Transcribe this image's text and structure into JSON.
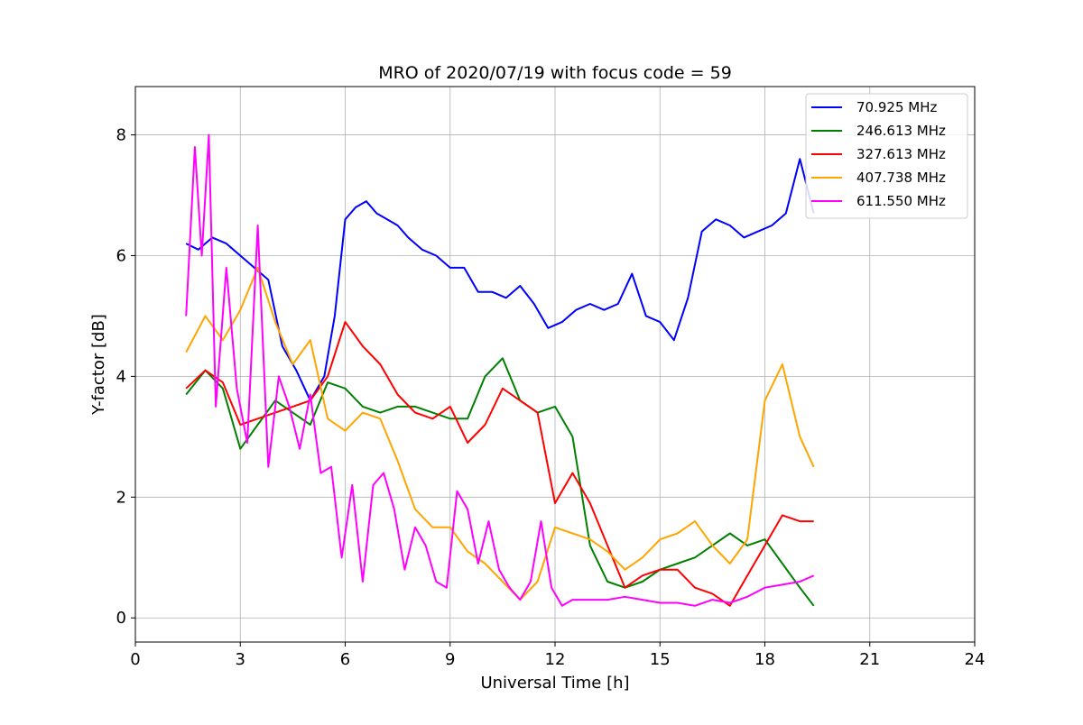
{
  "chart_data": {
    "type": "line",
    "title": "MRO of 2020/07/19 with focus code = 59",
    "xlabel": "Universal Time [h]",
    "ylabel": "Y-factor [dB]",
    "xlim": [
      0,
      24
    ],
    "ylim": [
      -0.4,
      8.8
    ],
    "xticks": [
      0,
      3,
      6,
      9,
      12,
      15,
      18,
      21,
      24
    ],
    "yticks": [
      0,
      2,
      4,
      6,
      8
    ],
    "grid": true,
    "legend_position": "top-right",
    "series": [
      {
        "name": " 70.925 MHz",
        "color": "#0000ff",
        "x": [
          1.45,
          1.8,
          2.2,
          2.6,
          3.0,
          3.4,
          3.8,
          4.2,
          4.6,
          5.0,
          5.4,
          5.7,
          6.0,
          6.3,
          6.6,
          6.9,
          7.2,
          7.5,
          7.8,
          8.2,
          8.6,
          9.0,
          9.4,
          9.8,
          10.2,
          10.6,
          11.0,
          11.4,
          11.8,
          12.2,
          12.6,
          13.0,
          13.4,
          13.8,
          14.2,
          14.6,
          15.0,
          15.4,
          15.8,
          16.2,
          16.6,
          17.0,
          17.4,
          17.8,
          18.2,
          18.6,
          19.0,
          19.4
        ],
        "y": [
          6.2,
          6.1,
          6.3,
          6.2,
          6.0,
          5.8,
          5.6,
          4.5,
          4.1,
          3.6,
          4.0,
          5.0,
          6.6,
          6.8,
          6.9,
          6.7,
          6.6,
          6.5,
          6.3,
          6.1,
          6.0,
          5.8,
          5.8,
          5.4,
          5.4,
          5.3,
          5.5,
          5.2,
          4.8,
          4.9,
          5.1,
          5.2,
          5.1,
          5.2,
          5.7,
          5.0,
          4.9,
          4.6,
          5.3,
          6.4,
          6.6,
          6.5,
          6.3,
          6.4,
          6.5,
          6.7,
          7.6,
          6.7
        ]
      },
      {
        "name": " 246.613 MHz",
        "color": "#008000",
        "x": [
          1.45,
          2.0,
          2.5,
          3.0,
          3.5,
          4.0,
          4.5,
          5.0,
          5.5,
          6.0,
          6.5,
          7.0,
          7.5,
          8.0,
          8.5,
          9.0,
          9.5,
          10.0,
          10.5,
          11.0,
          11.5,
          12.0,
          12.5,
          13.0,
          13.5,
          14.0,
          14.5,
          15.0,
          15.5,
          16.0,
          16.5,
          17.0,
          17.5,
          18.0,
          18.5,
          19.0,
          19.4
        ],
        "y": [
          3.7,
          4.1,
          3.8,
          2.8,
          3.2,
          3.6,
          3.4,
          3.2,
          3.9,
          3.8,
          3.5,
          3.4,
          3.5,
          3.5,
          3.4,
          3.3,
          3.3,
          4.0,
          4.3,
          3.6,
          3.4,
          3.5,
          3.0,
          1.2,
          0.6,
          0.5,
          0.6,
          0.8,
          0.9,
          1.0,
          1.2,
          1.4,
          1.2,
          1.3,
          0.9,
          0.5,
          0.2
        ]
      },
      {
        "name": " 327.613 MHz",
        "color": "#ff0000",
        "x": [
          1.45,
          2.0,
          2.5,
          3.0,
          3.5,
          4.0,
          4.5,
          5.0,
          5.5,
          6.0,
          6.5,
          7.0,
          7.5,
          8.0,
          8.5,
          9.0,
          9.5,
          10.0,
          10.5,
          11.0,
          11.5,
          12.0,
          12.5,
          13.0,
          13.5,
          14.0,
          14.5,
          15.0,
          15.5,
          16.0,
          16.5,
          17.0,
          17.5,
          18.0,
          18.5,
          19.0,
          19.4
        ],
        "y": [
          3.8,
          4.1,
          3.9,
          3.2,
          3.3,
          3.4,
          3.5,
          3.6,
          4.0,
          4.9,
          4.5,
          4.2,
          3.7,
          3.4,
          3.3,
          3.5,
          2.9,
          3.2,
          3.8,
          3.6,
          3.4,
          1.9,
          2.4,
          1.9,
          1.2,
          0.5,
          0.7,
          0.8,
          0.8,
          0.5,
          0.4,
          0.2,
          0.7,
          1.2,
          1.7,
          1.6,
          1.6
        ]
      },
      {
        "name": " 407.738 MHz",
        "color": "#ffa500",
        "x": [
          1.45,
          2.0,
          2.5,
          3.0,
          3.5,
          4.0,
          4.5,
          5.0,
          5.5,
          6.0,
          6.5,
          7.0,
          7.5,
          8.0,
          8.5,
          9.0,
          9.5,
          10.0,
          10.5,
          11.0,
          11.5,
          12.0,
          12.5,
          13.0,
          13.5,
          14.0,
          14.5,
          15.0,
          15.5,
          16.0,
          16.5,
          17.0,
          17.5,
          18.0,
          18.5,
          19.0,
          19.4
        ],
        "y": [
          4.4,
          5.0,
          4.6,
          5.1,
          5.8,
          4.9,
          4.2,
          4.6,
          3.3,
          3.1,
          3.4,
          3.3,
          2.6,
          1.8,
          1.5,
          1.5,
          1.1,
          0.9,
          0.6,
          0.3,
          0.6,
          1.5,
          1.4,
          1.3,
          1.1,
          0.8,
          1.0,
          1.3,
          1.4,
          1.6,
          1.2,
          0.9,
          1.3,
          3.6,
          4.2,
          3.0,
          2.5
        ]
      },
      {
        "name": " 611.550 MHz",
        "color": "#ff00ff",
        "x": [
          1.45,
          1.7,
          1.9,
          2.1,
          2.3,
          2.6,
          2.9,
          3.2,
          3.5,
          3.8,
          4.1,
          4.4,
          4.7,
          5.0,
          5.3,
          5.6,
          5.9,
          6.2,
          6.5,
          6.8,
          7.1,
          7.4,
          7.7,
          8.0,
          8.3,
          8.6,
          8.9,
          9.2,
          9.5,
          9.8,
          10.1,
          10.4,
          10.7,
          11.0,
          11.3,
          11.6,
          11.9,
          12.2,
          12.5,
          13.0,
          13.5,
          14.0,
          14.5,
          15.0,
          15.5,
          16.0,
          16.5,
          17.0,
          17.5,
          18.0,
          18.5,
          19.0,
          19.4
        ],
        "y": [
          5.0,
          7.8,
          6.0,
          8.0,
          3.5,
          5.8,
          3.8,
          2.9,
          6.5,
          2.5,
          4.0,
          3.5,
          2.8,
          3.7,
          2.4,
          2.5,
          1.0,
          2.2,
          0.6,
          2.2,
          2.4,
          1.8,
          0.8,
          1.5,
          1.2,
          0.6,
          0.5,
          2.1,
          1.8,
          0.9,
          1.6,
          0.8,
          0.5,
          0.3,
          0.6,
          1.6,
          0.5,
          0.2,
          0.3,
          0.3,
          0.3,
          0.35,
          0.3,
          0.25,
          0.25,
          0.2,
          0.3,
          0.25,
          0.35,
          0.5,
          0.55,
          0.6,
          0.7
        ]
      }
    ]
  }
}
